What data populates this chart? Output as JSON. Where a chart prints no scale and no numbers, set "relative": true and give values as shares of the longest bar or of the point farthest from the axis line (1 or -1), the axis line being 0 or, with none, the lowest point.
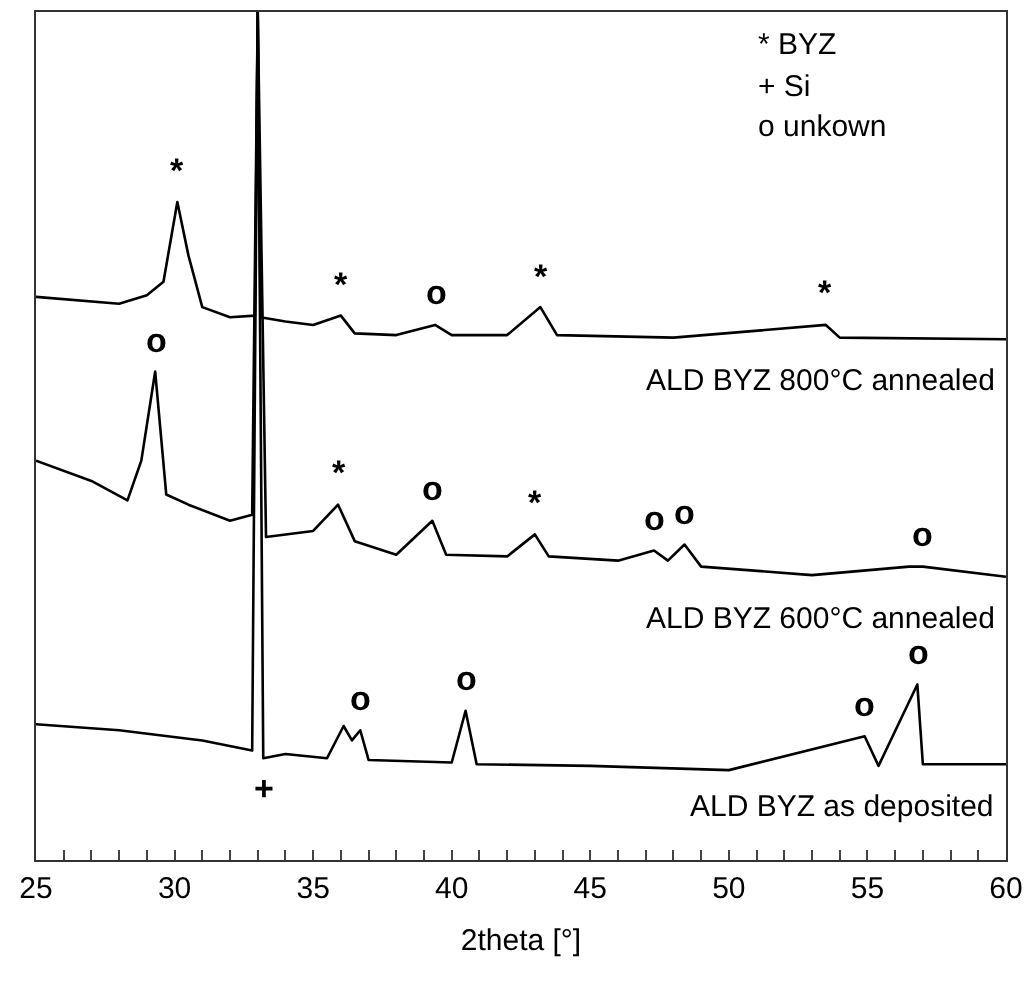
{
  "chart_data": {
    "type": "line",
    "relative": true,
    "xlabel": "2theta [°]",
    "xlim": [
      25,
      60
    ],
    "xticks": [
      25,
      {
        "value": 26,
        "label": null
      },
      {
        "value": 27,
        "label": null
      },
      {
        "value": 28,
        "label": null
      },
      {
        "value": 29,
        "label": null
      },
      30,
      {
        "value": 31,
        "label": null
      },
      {
        "value": 32,
        "label": null
      },
      {
        "value": 33,
        "label": null
      },
      {
        "value": 34,
        "label": null
      },
      35,
      {
        "value": 36,
        "label": null
      },
      {
        "value": 37,
        "label": null
      },
      {
        "value": 38,
        "label": null
      },
      {
        "value": 39,
        "label": null
      },
      40,
      {
        "value": 41,
        "label": null
      },
      {
        "value": 42,
        "label": null
      },
      {
        "value": 43,
        "label": null
      },
      {
        "value": 44,
        "label": null
      },
      45,
      {
        "value": 46,
        "label": null
      },
      {
        "value": 47,
        "label": null
      },
      {
        "value": 48,
        "label": null
      },
      {
        "value": 49,
        "label": null
      },
      50,
      {
        "value": 51,
        "label": null
      },
      {
        "value": 52,
        "label": null
      },
      {
        "value": 53,
        "label": null
      },
      {
        "value": 54,
        "label": null
      },
      55,
      {
        "value": 56,
        "label": null
      },
      {
        "value": 57,
        "label": null
      },
      {
        "value": 58,
        "label": null
      },
      {
        "value": 59,
        "label": null
      },
      60
    ],
    "legend": false,
    "marker": "none",
    "line_style": "solid",
    "series": [
      {
        "name": "ALD BYZ 800°C annealed",
        "color": "#000000",
        "x": [
          25,
          28,
          29,
          29.6,
          30.1,
          30.5,
          31,
          32,
          32.9,
          33,
          33.1,
          34,
          35,
          36,
          36.5,
          38,
          39.4,
          40,
          42,
          43.2,
          43.8,
          48,
          53.5,
          54,
          60
        ],
        "values": [
          0.664,
          0.656,
          0.666,
          0.682,
          0.776,
          0.713,
          0.652,
          0.64,
          0.642,
          1,
          0.64,
          0.635,
          0.631,
          0.642,
          0.621,
          0.619,
          0.631,
          0.619,
          0.619,
          0.652,
          0.619,
          0.616,
          0.631,
          0.616,
          0.614
        ]
      },
      {
        "name": "ALD BYZ 600°C annealed",
        "color": "#000000",
        "x": [
          25,
          27,
          28.3,
          28.8,
          29.3,
          29.7,
          30.5,
          32,
          32.8,
          33,
          33.3,
          35,
          35.9,
          36.5,
          38,
          39.3,
          39.8,
          42,
          43,
          43.5,
          46,
          47.3,
          47.8,
          48.4,
          49,
          53,
          56.5,
          57,
          60
        ],
        "values": [
          0.471,
          0.447,
          0.424,
          0.471,
          0.576,
          0.431,
          0.419,
          0.4,
          0.407,
          1,
          0.381,
          0.388,
          0.419,
          0.376,
          0.36,
          0.4,
          0.36,
          0.358,
          0.384,
          0.358,
          0.353,
          0.365,
          0.353,
          0.372,
          0.346,
          0.336,
          0.346,
          0.346,
          0.334
        ]
      },
      {
        "name": "ALD BYZ as deposited",
        "color": "#000000",
        "x": [
          25,
          28,
          31,
          32.8,
          33,
          33.2,
          34,
          35.5,
          36.1,
          36.4,
          36.7,
          37,
          40,
          40.5,
          40.9,
          45,
          50,
          54.9,
          55.4,
          56.8,
          57,
          60
        ],
        "values": [
          0.16,
          0.153,
          0.141,
          0.129,
          1,
          0.12,
          0.125,
          0.12,
          0.158,
          0.141,
          0.153,
          0.118,
          0.115,
          0.176,
          0.113,
          0.111,
          0.106,
          0.146,
          0.111,
          0.207,
          0.113,
          0.113
        ]
      }
    ],
    "annotations": [
      {
        "text": "*",
        "x": 30.1,
        "y": 0.776
      },
      {
        "text": "*",
        "x": 36,
        "y": 0.642
      },
      {
        "text": "o",
        "x": 39.4,
        "y": 0.631
      },
      {
        "text": "*",
        "x": 43.2,
        "y": 0.652
      },
      {
        "text": "*",
        "x": 53.5,
        "y": 0.631
      },
      {
        "text": "o",
        "x": 29.3,
        "y": 0.576
      },
      {
        "text": "*",
        "x": 35.9,
        "y": 0.419
      },
      {
        "text": "o",
        "x": 39.3,
        "y": 0.4
      },
      {
        "text": "*",
        "x": 43,
        "y": 0.384
      },
      {
        "text": "o",
        "x": 47.3,
        "y": 0.365
      },
      {
        "text": "o",
        "x": 48.4,
        "y": 0.372
      },
      {
        "text": "o",
        "x": 57,
        "y": 0.346
      },
      {
        "text": "+",
        "x": 33.2,
        "y": 0.12
      },
      {
        "text": "o",
        "x": 36.7,
        "y": 0.153
      },
      {
        "text": "o",
        "x": 40.5,
        "y": 0.176
      },
      {
        "text": "o",
        "x": 54.9,
        "y": 0.146
      },
      {
        "text": "o",
        "x": 56.8,
        "y": 0.207
      },
      "* BYZ",
      "+ Si",
      "o unkown"
    ]
  }
}
